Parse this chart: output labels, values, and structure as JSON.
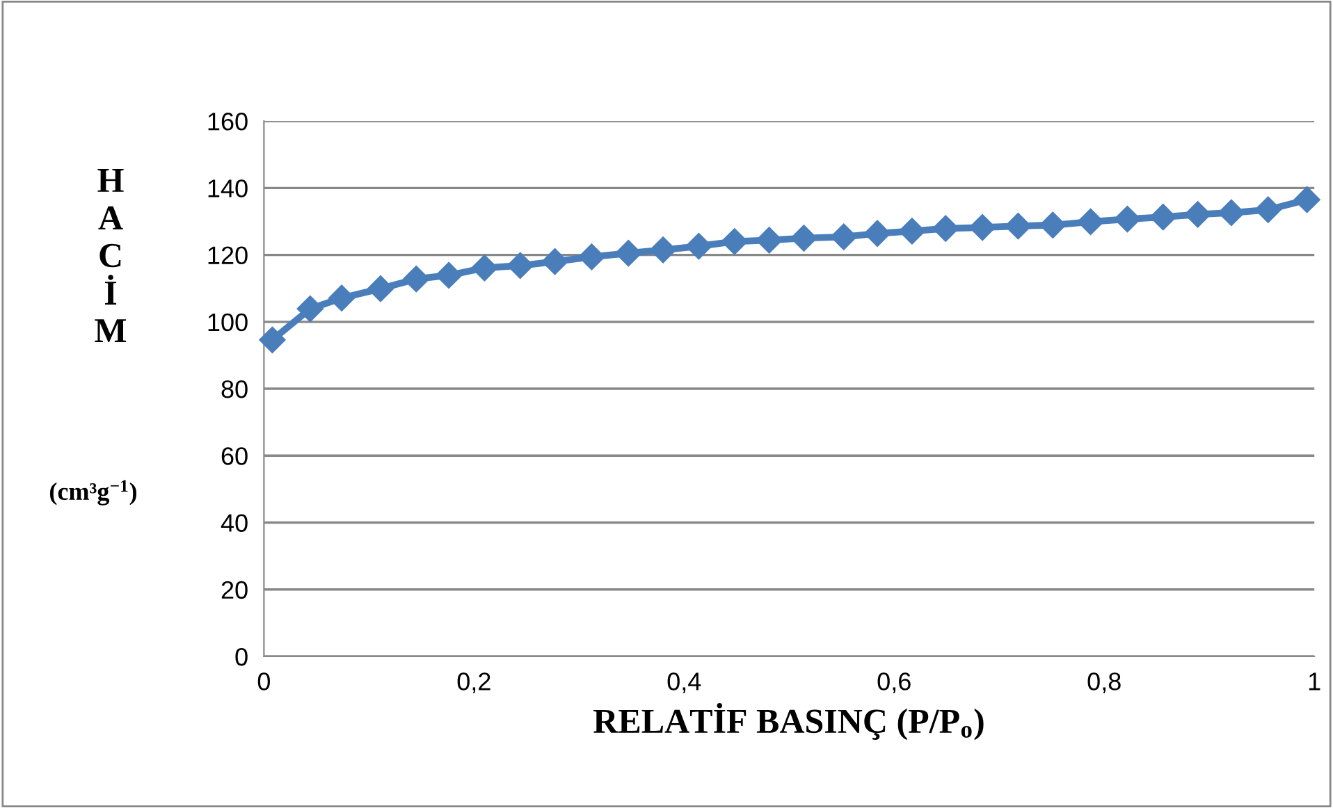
{
  "chart_data": {
    "type": "line",
    "xlabel": "RELATİF BASINÇ (P/P$_{o}$)",
    "ylabel": "HACİM (cm³g$^{−1}$)",
    "x": [
      0.008,
      0.044,
      0.074,
      0.111,
      0.145,
      0.176,
      0.21,
      0.244,
      0.277,
      0.312,
      0.347,
      0.38,
      0.414,
      0.448,
      0.481,
      0.514,
      0.552,
      0.584,
      0.617,
      0.649,
      0.684,
      0.718,
      0.751,
      0.787,
      0.822,
      0.856,
      0.889,
      0.921,
      0.956,
      0.993
    ],
    "series": [
      {
        "color": "#4a7ebb",
        "values": [
          94.6,
          103.9,
          107.1,
          109.9,
          112.8,
          113.9,
          116.1,
          116.8,
          118.0,
          119.4,
          120.5,
          121.5,
          122.6,
          124.0,
          124.4,
          125.0,
          125.4,
          126.4,
          127.1,
          127.9,
          128.2,
          128.6,
          128.9,
          129.9,
          130.7,
          131.3,
          132.1,
          132.6,
          133.5,
          136.5
        ]
      }
    ],
    "xlim": [
      0,
      1
    ],
    "ylim": [
      0,
      160
    ],
    "xticks": [
      0,
      {
        "value": 0.2,
        "label": "0,2"
      },
      {
        "value": 0.4,
        "label": "0,4"
      },
      {
        "value": 0.6,
        "label": "0,6"
      },
      {
        "value": 0.8,
        "label": "0,8"
      },
      1
    ],
    "yticks": [
      0,
      20,
      40,
      60,
      80,
      100,
      120,
      140,
      160
    ],
    "grid": "y",
    "marker": "diamond",
    "line_style": "solid"
  }
}
